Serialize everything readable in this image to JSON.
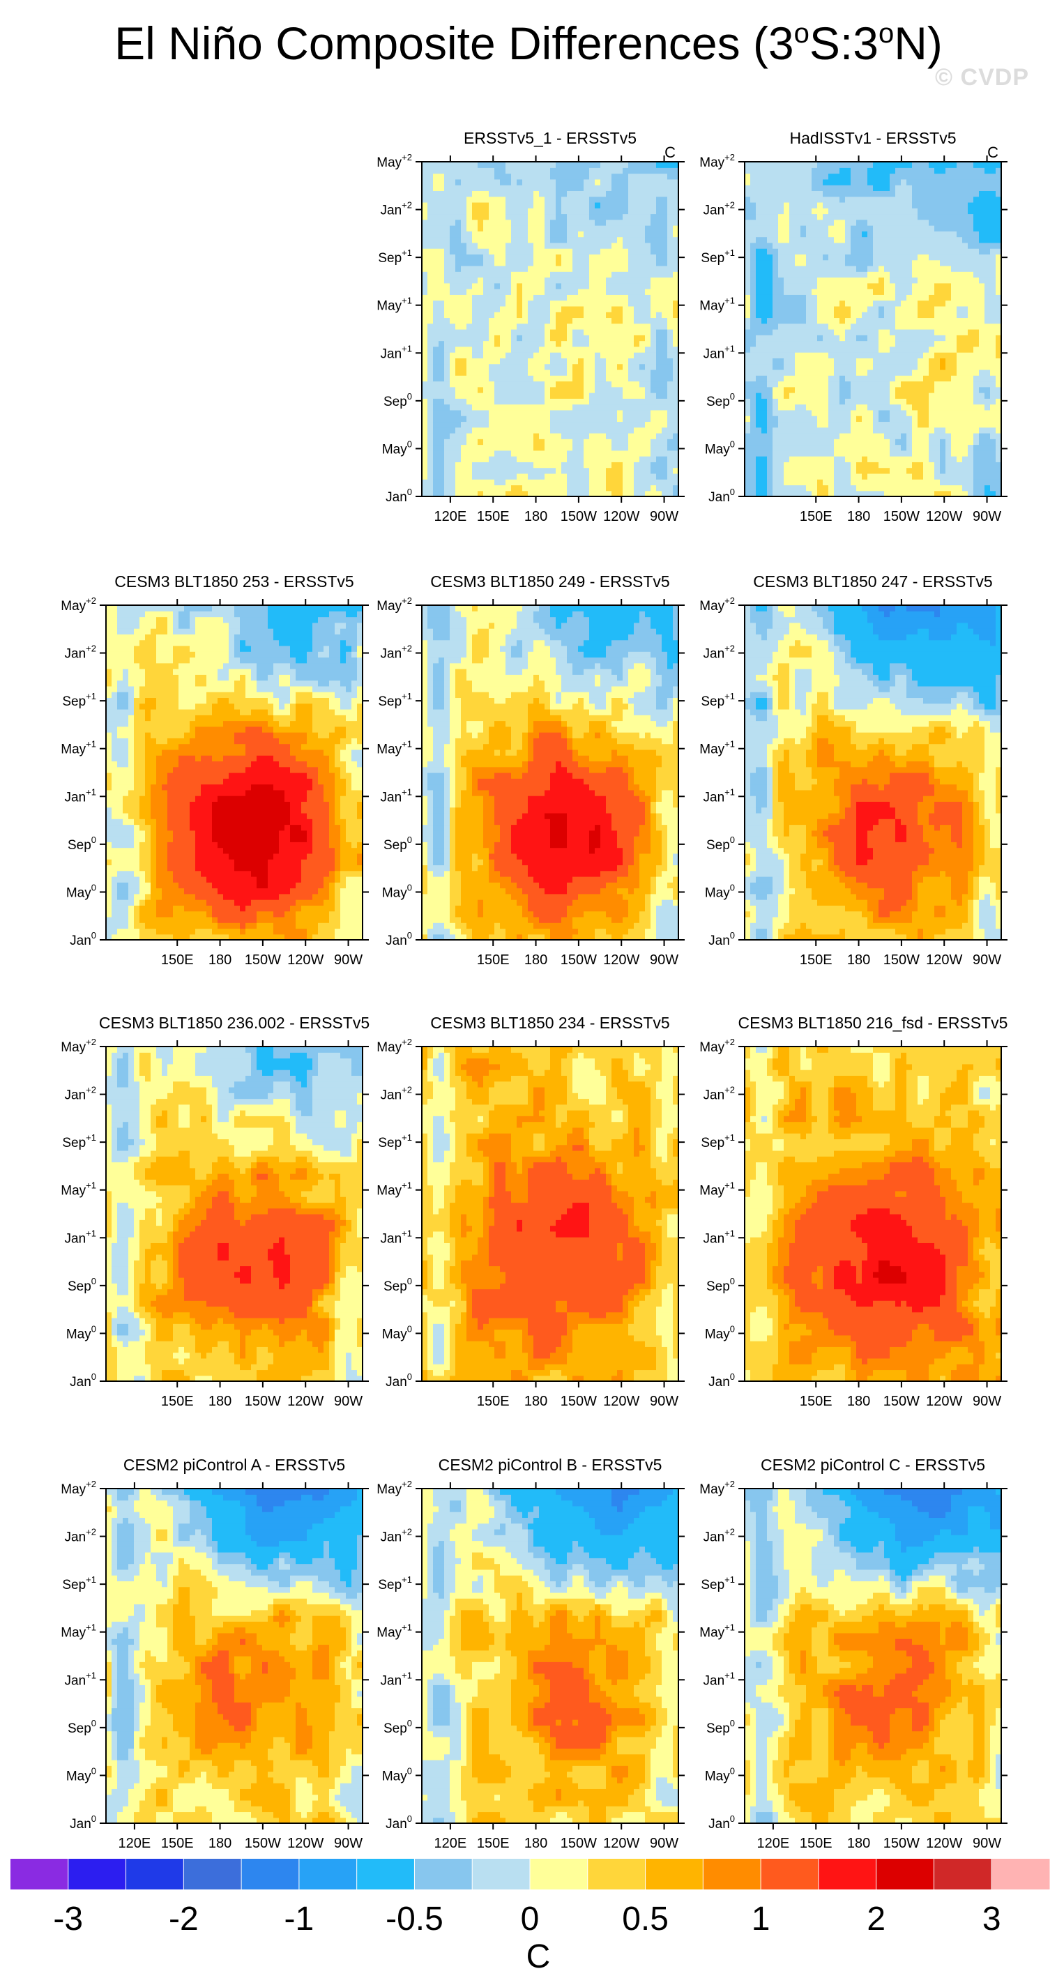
{
  "figure": {
    "title_text": "El Niño Composite Differences (3",
    "title_deg": "o",
    "title_mid": "S:3",
    "title_end": "N)",
    "watermark": "© CVDP",
    "unit_label": "C"
  },
  "colors": {
    "palette": [
      "#8a2be2",
      "#2c1ef0",
      "#1f3ae8",
      "#3c6edb",
      "#2d86ef",
      "#27a2f6",
      "#22bbf9",
      "#87c6ee",
      "#b9dff1",
      "#ffff99",
      "#ffd63a",
      "#ffb400",
      "#ff8c00",
      "#ff5a1e",
      "#ff1414",
      "#dc0000",
      "#d02828",
      "#ffb3b3"
    ],
    "frame": "#000000"
  },
  "axes": {
    "y_ticks": [
      {
        "main": "May",
        "sup": "+2"
      },
      {
        "main": "Jan",
        "sup": "+2"
      },
      {
        "main": "Sep",
        "sup": "+1"
      },
      {
        "main": "May",
        "sup": "+1"
      },
      {
        "main": "Jan",
        "sup": "+1"
      },
      {
        "main": "Sep",
        "sup": "0"
      },
      {
        "main": "May",
        "sup": "0"
      },
      {
        "main": "Jan",
        "sup": "0"
      }
    ],
    "x_ticks_full": [
      "120E",
      "150E",
      "180",
      "150W",
      "120W",
      "90W"
    ],
    "x_ticks_short": [
      "150E",
      "180",
      "150W",
      "120W",
      "90W"
    ],
    "x_range": [
      100,
      280
    ]
  },
  "chart_data": {
    "type": "heatmap",
    "title": "El Niño Composite Differences (3°S:3°N)",
    "colorbar": {
      "labels": [
        "-3",
        "-2",
        "-1",
        "-0.5",
        "0",
        "0.5",
        "1",
        "2",
        "3"
      ],
      "levels": [
        -4,
        -3.5,
        -3,
        -2.5,
        -2,
        -1.5,
        -1,
        -0.5,
        -0.25,
        0,
        0.25,
        0.5,
        0.75,
        1,
        1.5,
        2,
        2.5,
        3
      ],
      "unit": "C"
    },
    "panels": [
      {
        "title": "ERSSTv5_1 - ERSSTv5",
        "unit": "C",
        "row": 0,
        "col": 1,
        "x_ticks": "full",
        "base": 0.05,
        "warm": 0.05,
        "warm_lon": 190,
        "warm_time": 10,
        "cold_late": 0.35,
        "west": 0.2,
        "east": 0.2,
        "seed": 3
      },
      {
        "title": "HadISSTv1 - ERSSTv5",
        "unit": "C",
        "row": 0,
        "col": 2,
        "x_ticks": "short",
        "base": 0.0,
        "warm": 0.25,
        "warm_lon": 255,
        "warm_time": 12,
        "cold_late": 0.6,
        "west": 0.35,
        "east": 0.3,
        "seed": 5
      },
      {
        "title": "CESM3 BLT1850 253 - ERSSTv5",
        "unit": "",
        "row": 1,
        "col": 0,
        "x_ticks": "short",
        "base": 0.35,
        "warm": 2.2,
        "warm_lon": 205,
        "warm_time": 9,
        "cold_late": 0.9,
        "west": 0.5,
        "east": 0.4,
        "seed": 7
      },
      {
        "title": "CESM3 BLT1850 249 - ERSSTv5",
        "unit": "",
        "row": 1,
        "col": 1,
        "x_ticks": "short",
        "base": 0.3,
        "warm": 1.8,
        "warm_lon": 200,
        "warm_time": 9,
        "cold_late": 0.8,
        "west": 0.5,
        "east": 0.45,
        "seed": 11
      },
      {
        "title": "CESM3 BLT1850 247 - ERSSTv5",
        "unit": "",
        "row": 1,
        "col": 2,
        "x_ticks": "short",
        "base": 0.3,
        "warm": 1.2,
        "warm_lon": 200,
        "warm_time": 9,
        "cold_late": 1.6,
        "west": 0.55,
        "east": 0.5,
        "seed": 13
      },
      {
        "title": "CESM3 BLT1850 236.002 - ERSSTv5",
        "unit": "",
        "row": 2,
        "col": 0,
        "x_ticks": "short",
        "base": 0.35,
        "warm": 1.2,
        "warm_lon": 205,
        "warm_time": 10,
        "cold_late": 0.7,
        "west": 0.5,
        "east": 0.3,
        "seed": 17
      },
      {
        "title": "CESM3 BLT1850 234 - ERSSTv5",
        "unit": "",
        "row": 2,
        "col": 1,
        "x_ticks": "short",
        "base": 0.55,
        "warm": 1.1,
        "warm_lon": 195,
        "warm_time": 11,
        "cold_late": 0.2,
        "west": 0.45,
        "east": 0.45,
        "seed": 19
      },
      {
        "title": "CESM3 BLT1850 216_fsd - ERSSTv5",
        "unit": "",
        "row": 2,
        "col": 2,
        "x_ticks": "short",
        "base": 0.6,
        "warm": 1.3,
        "warm_lon": 200,
        "warm_time": 10,
        "cold_late": 0.3,
        "west": 0.5,
        "east": 0.3,
        "seed": 23
      },
      {
        "title": "CESM2 piControl A - ERSSTv5",
        "unit": "",
        "row": 3,
        "col": 0,
        "x_ticks": "full",
        "base": 0.3,
        "warm": 0.7,
        "warm_lon": 205,
        "warm_time": 11,
        "cold_late": 1.7,
        "west": 0.5,
        "east": 0.3,
        "seed": 29
      },
      {
        "title": "CESM2 piControl B - ERSSTv5",
        "unit": "",
        "row": 3,
        "col": 1,
        "x_ticks": "full",
        "base": 0.3,
        "warm": 0.75,
        "warm_lon": 210,
        "warm_time": 11,
        "cold_late": 1.6,
        "west": 0.5,
        "east": 0.3,
        "seed": 31
      },
      {
        "title": "CESM2 piControl C - ERSSTv5",
        "unit": "",
        "row": 3,
        "col": 2,
        "x_ticks": "full",
        "base": 0.3,
        "warm": 0.8,
        "warm_lon": 205,
        "warm_time": 11,
        "cold_late": 1.8,
        "west": 0.5,
        "east": 0.3,
        "seed": 37
      }
    ]
  }
}
